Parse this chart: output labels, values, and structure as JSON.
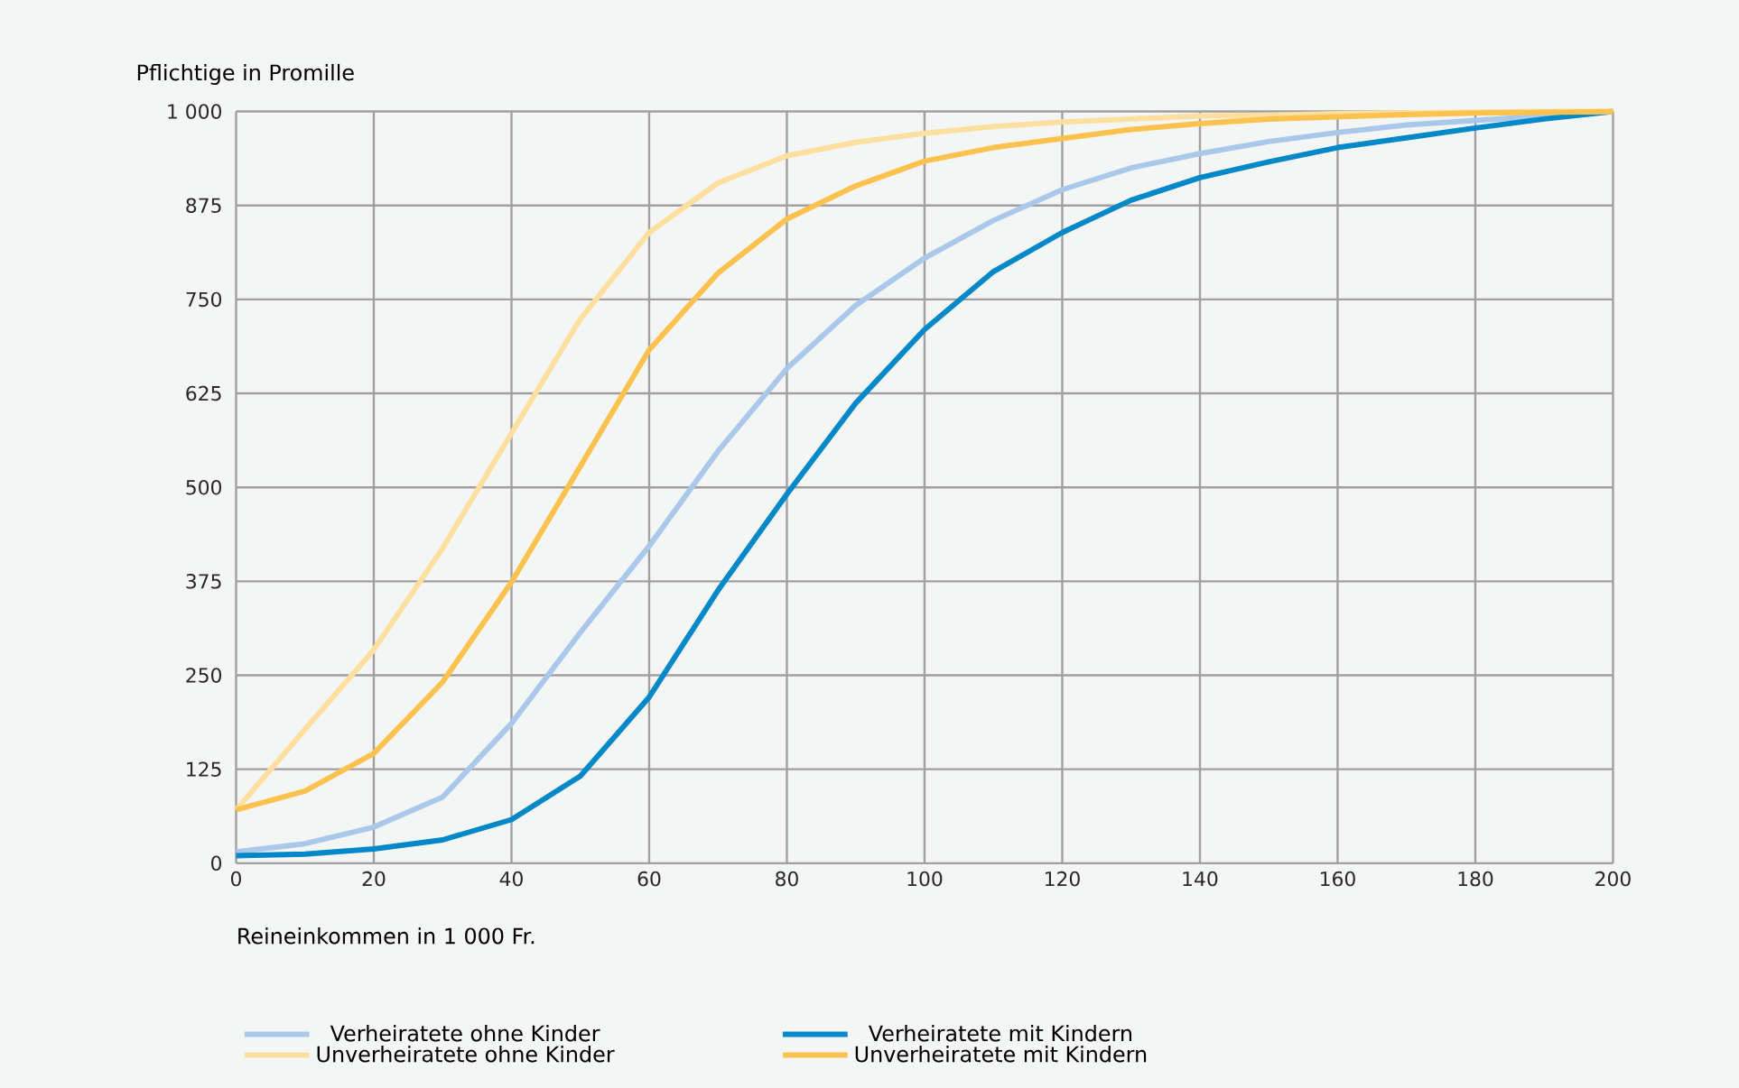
{
  "chart_data": {
    "type": "line",
    "ylabel": "Pflichtige in Promille",
    "xlabel": "Reineinkommen in 1 000 Fr.",
    "x": [
      0,
      10,
      20,
      30,
      40,
      50,
      60,
      70,
      80,
      90,
      100,
      110,
      120,
      130,
      140,
      150,
      160,
      170,
      180,
      190,
      200
    ],
    "series": [
      {
        "name": "Verheiratete ohne Kinder",
        "color": "#a9c8ea",
        "values": [
          15,
          26,
          48,
          88,
          186,
          307,
          422,
          548,
          658,
          742,
          805,
          855,
          896,
          925,
          944,
          960,
          972,
          982,
          988,
          994,
          1000
        ]
      },
      {
        "name": "Verheiratete mit Kindern",
        "color": "#0088c8",
        "values": [
          10,
          12,
          19,
          31,
          58,
          116,
          221,
          363,
          491,
          612,
          710,
          787,
          839,
          882,
          912,
          933,
          952,
          965,
          978,
          990,
          1000
        ]
      },
      {
        "name": "Unverheiratete ohne Kinder",
        "color": "#fde0a0",
        "values": [
          71,
          178,
          284,
          419,
          572,
          724,
          839,
          905,
          941,
          959,
          971,
          980,
          986,
          990,
          994,
          995,
          997,
          998,
          999,
          1000,
          1000
        ]
      },
      {
        "name": "Unverheiratete mit Kindern",
        "color": "#fcc250",
        "values": [
          71,
          96,
          146,
          241,
          374,
          528,
          683,
          785,
          857,
          901,
          934,
          952,
          964,
          976,
          984,
          990,
          993,
          996,
          998,
          999,
          1000
        ]
      }
    ],
    "xlim": [
      0,
      200
    ],
    "ylim": [
      0,
      1000
    ],
    "xticks": [
      0,
      20,
      40,
      60,
      80,
      100,
      120,
      140,
      160,
      180,
      200
    ],
    "yticks": [
      0,
      125,
      250,
      375,
      500,
      625,
      750,
      875,
      {
        "value": 1000,
        "label": "1 000"
      }
    ],
    "grid": true,
    "legend": "bottom",
    "marker": "none",
    "line_style": "solid"
  }
}
